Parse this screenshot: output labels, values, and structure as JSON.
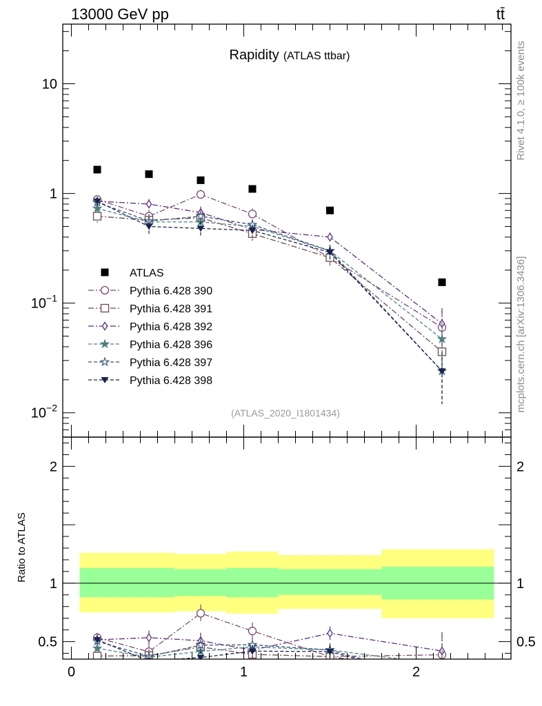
{
  "header": {
    "energy_label": "13000 GeV pp",
    "process_label": "tt̄",
    "side_top": "Rivet 4.1.0, ≥ 100k events",
    "side_bottom": "mcplots.cern.ch [arXiv:1306.3436]"
  },
  "chart_data": {
    "type": "line",
    "title": "Rapidity",
    "subtitle": "(ATLAS ttbar)",
    "analysis_tag": "(ATLAS_2020_I1801434)",
    "ylabel_ratio": "Ratio to ATLAS",
    "xlim": [
      -0.05,
      2.55
    ],
    "ylim_main": [
      0.006,
      35
    ],
    "ylim_ratio": [
      0.35,
      2.25
    ],
    "x_ticks": [
      "0",
      "1",
      "2"
    ],
    "y_ticks_main": [
      {
        "value": 0.01,
        "base": "10",
        "exp": "−2"
      },
      {
        "value": 0.1,
        "base": "10",
        "exp": "−1"
      },
      {
        "value": 1,
        "base": "1",
        "exp": ""
      },
      {
        "value": 10,
        "base": "10",
        "exp": ""
      }
    ],
    "y_ticks_ratio": [
      {
        "value": 0.5,
        "label": "0.5"
      },
      {
        "value": 1,
        "label": "1"
      },
      {
        "value": 2,
        "label": "2"
      }
    ],
    "bin_edges": [
      0,
      0.3,
      0.6,
      0.9,
      1.2,
      1.8,
      2.5
    ],
    "bin_centers": [
      0.15,
      0.45,
      0.75,
      1.05,
      1.5,
      2.15
    ],
    "data": {
      "name": "ATLAS",
      "values": [
        1.65,
        1.5,
        1.32,
        1.1,
        0.7,
        0.155
      ]
    },
    "uncertainty_bands": {
      "inner_low": [
        0.88,
        0.88,
        0.89,
        0.88,
        0.9,
        0.86
      ],
      "inner_high": [
        1.13,
        1.13,
        1.12,
        1.13,
        1.12,
        1.14
      ],
      "outer_low": [
        0.75,
        0.75,
        0.76,
        0.74,
        0.78,
        0.7
      ],
      "outer_high": [
        1.26,
        1.26,
        1.25,
        1.27,
        1.24,
        1.29
      ],
      "inner_color": "#99ff99",
      "outer_color": "#ffff80"
    },
    "series": [
      {
        "name": "Pythia 6.428 390",
        "color": "#7b4a6e",
        "dash": "8,3,2,3",
        "marker": "circle-open",
        "values": [
          0.88,
          0.62,
          0.98,
          0.65,
          0.26,
          0.06
        ],
        "errors": [
          0.07,
          0.09,
          0.1,
          0.08,
          0.04,
          0.025
        ]
      },
      {
        "name": "Pythia 6.428 391",
        "color": "#6e4a4a",
        "dash": "8,3,2,3",
        "marker": "square-open",
        "values": [
          0.62,
          0.57,
          0.6,
          0.43,
          0.26,
          0.036
        ],
        "errors": [
          0.08,
          0.08,
          0.08,
          0.06,
          0.03,
          0.015
        ]
      },
      {
        "name": "Pythia 6.428 392",
        "color": "#5a2d82",
        "dash": "8,3,2,3",
        "marker": "diamond-open",
        "values": [
          0.85,
          0.8,
          0.67,
          0.47,
          0.4,
          0.065
        ],
        "errors": [
          0.08,
          0.09,
          0.09,
          0.06,
          0.04,
          0.025
        ]
      },
      {
        "name": "Pythia 6.428 396",
        "color": "#4e7f80",
        "dash": "5,3",
        "marker": "star-filled",
        "values": [
          0.73,
          0.55,
          0.55,
          0.5,
          0.3,
          0.047
        ],
        "errors": [
          0.07,
          0.08,
          0.07,
          0.06,
          0.04,
          0.02
        ]
      },
      {
        "name": "Pythia 6.428 397",
        "color": "#35507a",
        "dash": "5,3",
        "marker": "star-open",
        "values": [
          0.83,
          0.56,
          0.62,
          0.52,
          0.3,
          0.024
        ],
        "errors": [
          0.07,
          0.08,
          0.08,
          0.06,
          0.04,
          0.012
        ]
      },
      {
        "name": "Pythia 6.428 398",
        "color": "#1a2350",
        "dash": "5,3",
        "marker": "triangle-down-filled",
        "values": [
          0.85,
          0.5,
          0.48,
          0.46,
          0.29,
          0.024
        ],
        "errors": [
          0.07,
          0.08,
          0.08,
          0.06,
          0.04,
          0.012
        ]
      }
    ]
  }
}
